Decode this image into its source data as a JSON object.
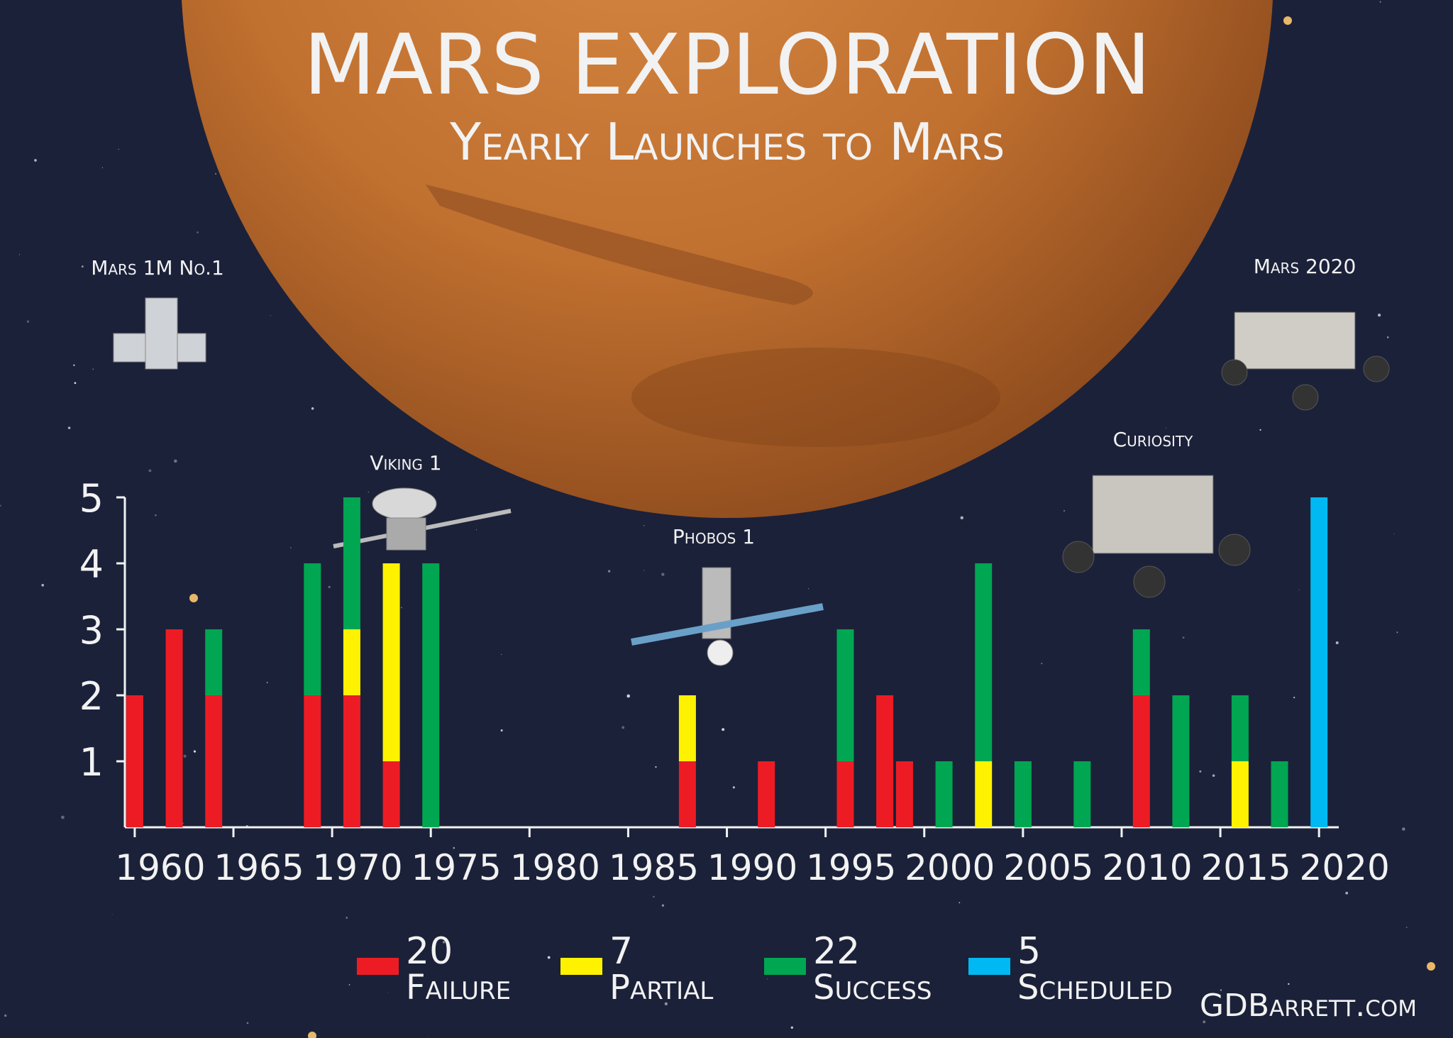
{
  "chart_data": {
    "type": "bar",
    "stacked": true,
    "title": "MARS EXPLORATION",
    "subtitle": "Yearly Launches to Mars",
    "x": [
      1960,
      1962,
      1964,
      1969,
      1971,
      1973,
      1975,
      1988,
      1992,
      1996,
      1998,
      1999,
      2001,
      2003,
      2005,
      2008,
      2011,
      2013,
      2016,
      2018,
      2020
    ],
    "xlim": [
      1959.5,
      2021
    ],
    "xticks": [
      1960,
      1965,
      1970,
      1975,
      1980,
      1985,
      1990,
      1995,
      2000,
      2005,
      2010,
      2015,
      2020
    ],
    "ylim": [
      0,
      5
    ],
    "yticks": [
      1,
      2,
      3,
      4,
      5
    ],
    "series": [
      {
        "name": "Failure",
        "color": "#ed1c24",
        "count": 20,
        "values": [
          2,
          3,
          2,
          2,
          2,
          1,
          null,
          1,
          1,
          1,
          2,
          1,
          null,
          null,
          null,
          null,
          2,
          null,
          null,
          null,
          null
        ]
      },
      {
        "name": "Partial",
        "color": "#fff200",
        "count": 7,
        "values": [
          null,
          null,
          null,
          null,
          1,
          3,
          null,
          1,
          null,
          null,
          null,
          null,
          null,
          1,
          null,
          null,
          null,
          null,
          1,
          null,
          null
        ]
      },
      {
        "name": "Success",
        "color": "#00a651",
        "count": 22,
        "values": [
          null,
          null,
          1,
          2,
          2,
          null,
          4,
          null,
          null,
          2,
          null,
          null,
          1,
          3,
          1,
          1,
          1,
          2,
          1,
          1,
          null
        ]
      },
      {
        "name": "Scheduled",
        "color": "#00b9f2",
        "count": 5,
        "values": [
          null,
          null,
          null,
          null,
          null,
          null,
          null,
          null,
          null,
          null,
          null,
          null,
          null,
          null,
          null,
          null,
          null,
          null,
          null,
          null,
          5
        ]
      }
    ],
    "annotations": [
      {
        "text": "Mars 1M No.1"
      },
      {
        "text": "Viking 1"
      },
      {
        "text": "Phobos 1"
      },
      {
        "text": "Curiosity"
      },
      {
        "text": "Mars 2020"
      }
    ],
    "credit": "GDBarrett.com"
  }
}
